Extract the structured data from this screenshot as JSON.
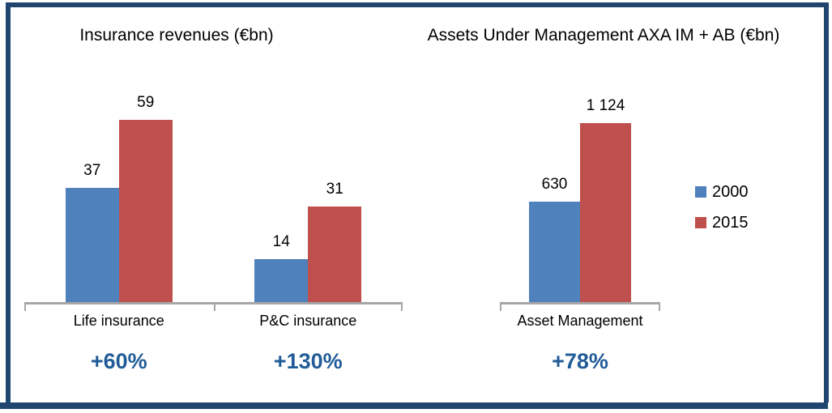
{
  "page": {
    "background": "#FFFFFF",
    "frame_color": "#20456F",
    "bottom_bar_color": "#20456F"
  },
  "colors": {
    "bar_2000": "#4F81BD",
    "bar_2015": "#C0504D",
    "axis": "#A6A6A6",
    "growth_text": "#215C98",
    "label_text": "#000000"
  },
  "chart_data": [
    {
      "type": "bar",
      "title": "Insurance revenues (€bn)",
      "categories": [
        "Life insurance",
        "P&C insurance"
      ],
      "series": [
        {
          "name": "2000",
          "color": "#4F81BD",
          "values": [
            37,
            14
          ],
          "labels": [
            "37",
            "14"
          ]
        },
        {
          "name": "2015",
          "color": "#C0504D",
          "values": [
            59,
            31
          ],
          "labels": [
            "59",
            "31"
          ]
        }
      ],
      "growth": [
        "+60%",
        "+130%"
      ],
      "ylim": [
        0,
        74
      ],
      "grid": false,
      "legend_position": "none",
      "xlabel": "",
      "ylabel": ""
    },
    {
      "type": "bar",
      "title": "Assets Under Management AXA IM + AB (€bn)",
      "categories": [
        "Asset Management"
      ],
      "series": [
        {
          "name": "2000",
          "color": "#4F81BD",
          "values": [
            630
          ],
          "labels": [
            "630"
          ]
        },
        {
          "name": "2015",
          "color": "#C0504D",
          "values": [
            1124
          ],
          "labels": [
            "1 124"
          ]
        }
      ],
      "growth": [
        "+78%"
      ],
      "ylim": [
        0,
        1160
      ],
      "grid": false,
      "legend_position": "right",
      "xlabel": "",
      "ylabel": ""
    }
  ],
  "legend": {
    "items": [
      {
        "label": "2000",
        "color": "#4F81BD"
      },
      {
        "label": "2015",
        "color": "#C0504D"
      }
    ]
  }
}
